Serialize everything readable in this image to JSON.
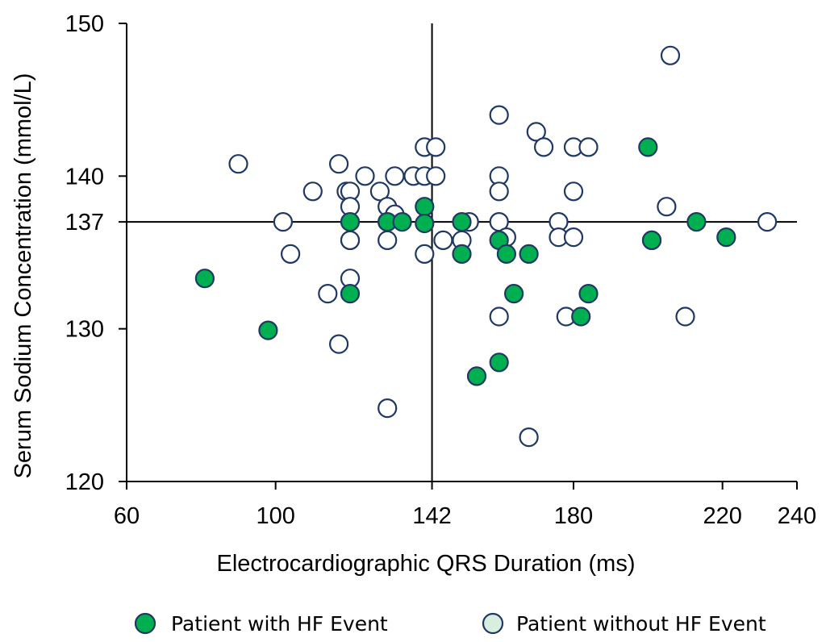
{
  "chart_data": {
    "type": "scatter",
    "title": "",
    "xlabel": "Electrocardiographic QRS Duration (ms)",
    "ylabel": "Serum Sodium Concentration (mmol/L)",
    "xlim": [
      60,
      240
    ],
    "ylim": [
      120,
      150
    ],
    "x_ticks": [
      60,
      100,
      142,
      180,
      220,
      240
    ],
    "y_ticks": [
      120,
      130,
      137,
      140,
      150
    ],
    "reference_lines": {
      "x": 142,
      "y": 137
    },
    "legend_position": "bottom",
    "series": [
      {
        "name": "Patient with HF Event",
        "fill": "#00b050",
        "stroke": "#1f3864",
        "points": [
          [
            81,
            133.3
          ],
          [
            98,
            129.9
          ],
          [
            120,
            132.3
          ],
          [
            120,
            137
          ],
          [
            130,
            137
          ],
          [
            134,
            137
          ],
          [
            140,
            138
          ],
          [
            140,
            136.9
          ],
          [
            150,
            137
          ],
          [
            150,
            134.9
          ],
          [
            154,
            126.9
          ],
          [
            160,
            127.8
          ],
          [
            160,
            135.8
          ],
          [
            162,
            134.9
          ],
          [
            164,
            132.3
          ],
          [
            168,
            134.9
          ],
          [
            182,
            130.8
          ],
          [
            184,
            132.3
          ],
          [
            200,
            141.9
          ],
          [
            201,
            135.8
          ],
          [
            213,
            137
          ],
          [
            221,
            136
          ]
        ]
      },
      {
        "name": "Patient without HF Event",
        "fill": "#ffffff",
        "stroke": "#1f3864",
        "points": [
          [
            90,
            140.8
          ],
          [
            102,
            137
          ],
          [
            104,
            134.9
          ],
          [
            110,
            139
          ],
          [
            114,
            132.3
          ],
          [
            117,
            140.8
          ],
          [
            117,
            129
          ],
          [
            119,
            139
          ],
          [
            120,
            139
          ],
          [
            120,
            138
          ],
          [
            120,
            135.8
          ],
          [
            120,
            135.8
          ],
          [
            120,
            133.3
          ],
          [
            124,
            140
          ],
          [
            128,
            139
          ],
          [
            130,
            138
          ],
          [
            130,
            137
          ],
          [
            130,
            135.8
          ],
          [
            130,
            124.8
          ],
          [
            132,
            140
          ],
          [
            132,
            137.5
          ],
          [
            137,
            140
          ],
          [
            140,
            141.9
          ],
          [
            140,
            140
          ],
          [
            140,
            134.9
          ],
          [
            143,
            141.9
          ],
          [
            143,
            140
          ],
          [
            145,
            135.8
          ],
          [
            150,
            135.8
          ],
          [
            152,
            137
          ],
          [
            160,
            144
          ],
          [
            160,
            140
          ],
          [
            160,
            139
          ],
          [
            160,
            137
          ],
          [
            160,
            130.8
          ],
          [
            162,
            136
          ],
          [
            168,
            122.9
          ],
          [
            170,
            142.9
          ],
          [
            172,
            141.9
          ],
          [
            176,
            137
          ],
          [
            176,
            136
          ],
          [
            178,
            130.8
          ],
          [
            180,
            141.9
          ],
          [
            180,
            139
          ],
          [
            180,
            136
          ],
          [
            184,
            141.9
          ],
          [
            201,
            135.8
          ],
          [
            205,
            138
          ],
          [
            206,
            147.9
          ],
          [
            210,
            130.8
          ],
          [
            232,
            137
          ]
        ]
      }
    ]
  }
}
